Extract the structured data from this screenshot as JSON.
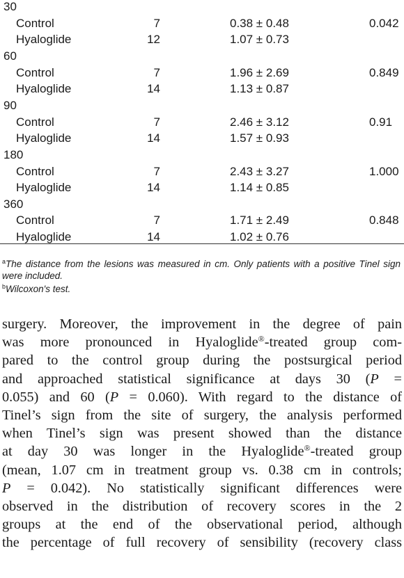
{
  "table": {
    "groups": [
      {
        "day": "30",
        "p": "0.042",
        "rows": [
          {
            "label": "Control",
            "n": 7,
            "mean_sd": "0.38 ± 0.48"
          },
          {
            "label": "Hyaloglide",
            "n": 12,
            "mean_sd": "1.07 ± 0.73"
          }
        ]
      },
      {
        "day": "60",
        "p": "0.849",
        "rows": [
          {
            "label": "Control",
            "n": 7,
            "mean_sd": "1.96 ± 2.69"
          },
          {
            "label": "Hyaloglide",
            "n": 14,
            "mean_sd": "1.13 ± 0.87"
          }
        ]
      },
      {
        "day": "90",
        "p": "0.91",
        "rows": [
          {
            "label": "Control",
            "n": 7,
            "mean_sd": "2.46 ± 3.12"
          },
          {
            "label": "Hyaloglide",
            "n": 14,
            "mean_sd": "1.57 ± 0.93"
          }
        ]
      },
      {
        "day": "180",
        "p": "1.000",
        "rows": [
          {
            "label": "Control",
            "n": 7,
            "mean_sd": "2.43 ± 3.27"
          },
          {
            "label": "Hyaloglide",
            "n": 14,
            "mean_sd": "1.14 ± 0.85"
          }
        ]
      },
      {
        "day": "360",
        "p": "0.848",
        "rows": [
          {
            "label": "Control",
            "n": 7,
            "mean_sd": "1.71 ± 2.49"
          },
          {
            "label": "Hyaloglide",
            "n": 14,
            "mean_sd": "1.02 ± 0.76"
          }
        ]
      }
    ],
    "footnotes": [
      {
        "marker": "a",
        "text": "The distance from the lesions was measured in cm. Only patients with a positive Tinel sign were included."
      },
      {
        "marker": "b",
        "text": "Wilcoxon's test."
      }
    ]
  },
  "body": {
    "lines": [
      "surgery. Moreover, the improvement in the degree of pain",
      "was more pronounced in Hyaloglide®-treated group com-",
      "pared to the control group during the postsurgical period",
      "and approached statistical significance at days 30 (P =",
      "0.055) and 60 (P = 0.060). With regard to the distance of",
      "Tinel’s sign from the site of surgery, the analysis performed",
      "when Tinel’s sign was present showed than the distance",
      "at day 30 was longer in the Hyaloglide®-treated group",
      "(mean, 1.07 cm in treatment group vs. 0.38 cm in controls;",
      "P = 0.042). No statistically significant differences were",
      "observed in the distribution of recovery scores in the 2",
      "groups at the end of the observational period, although",
      "the percentage of full recovery of sensibility (recovery class"
    ]
  }
}
